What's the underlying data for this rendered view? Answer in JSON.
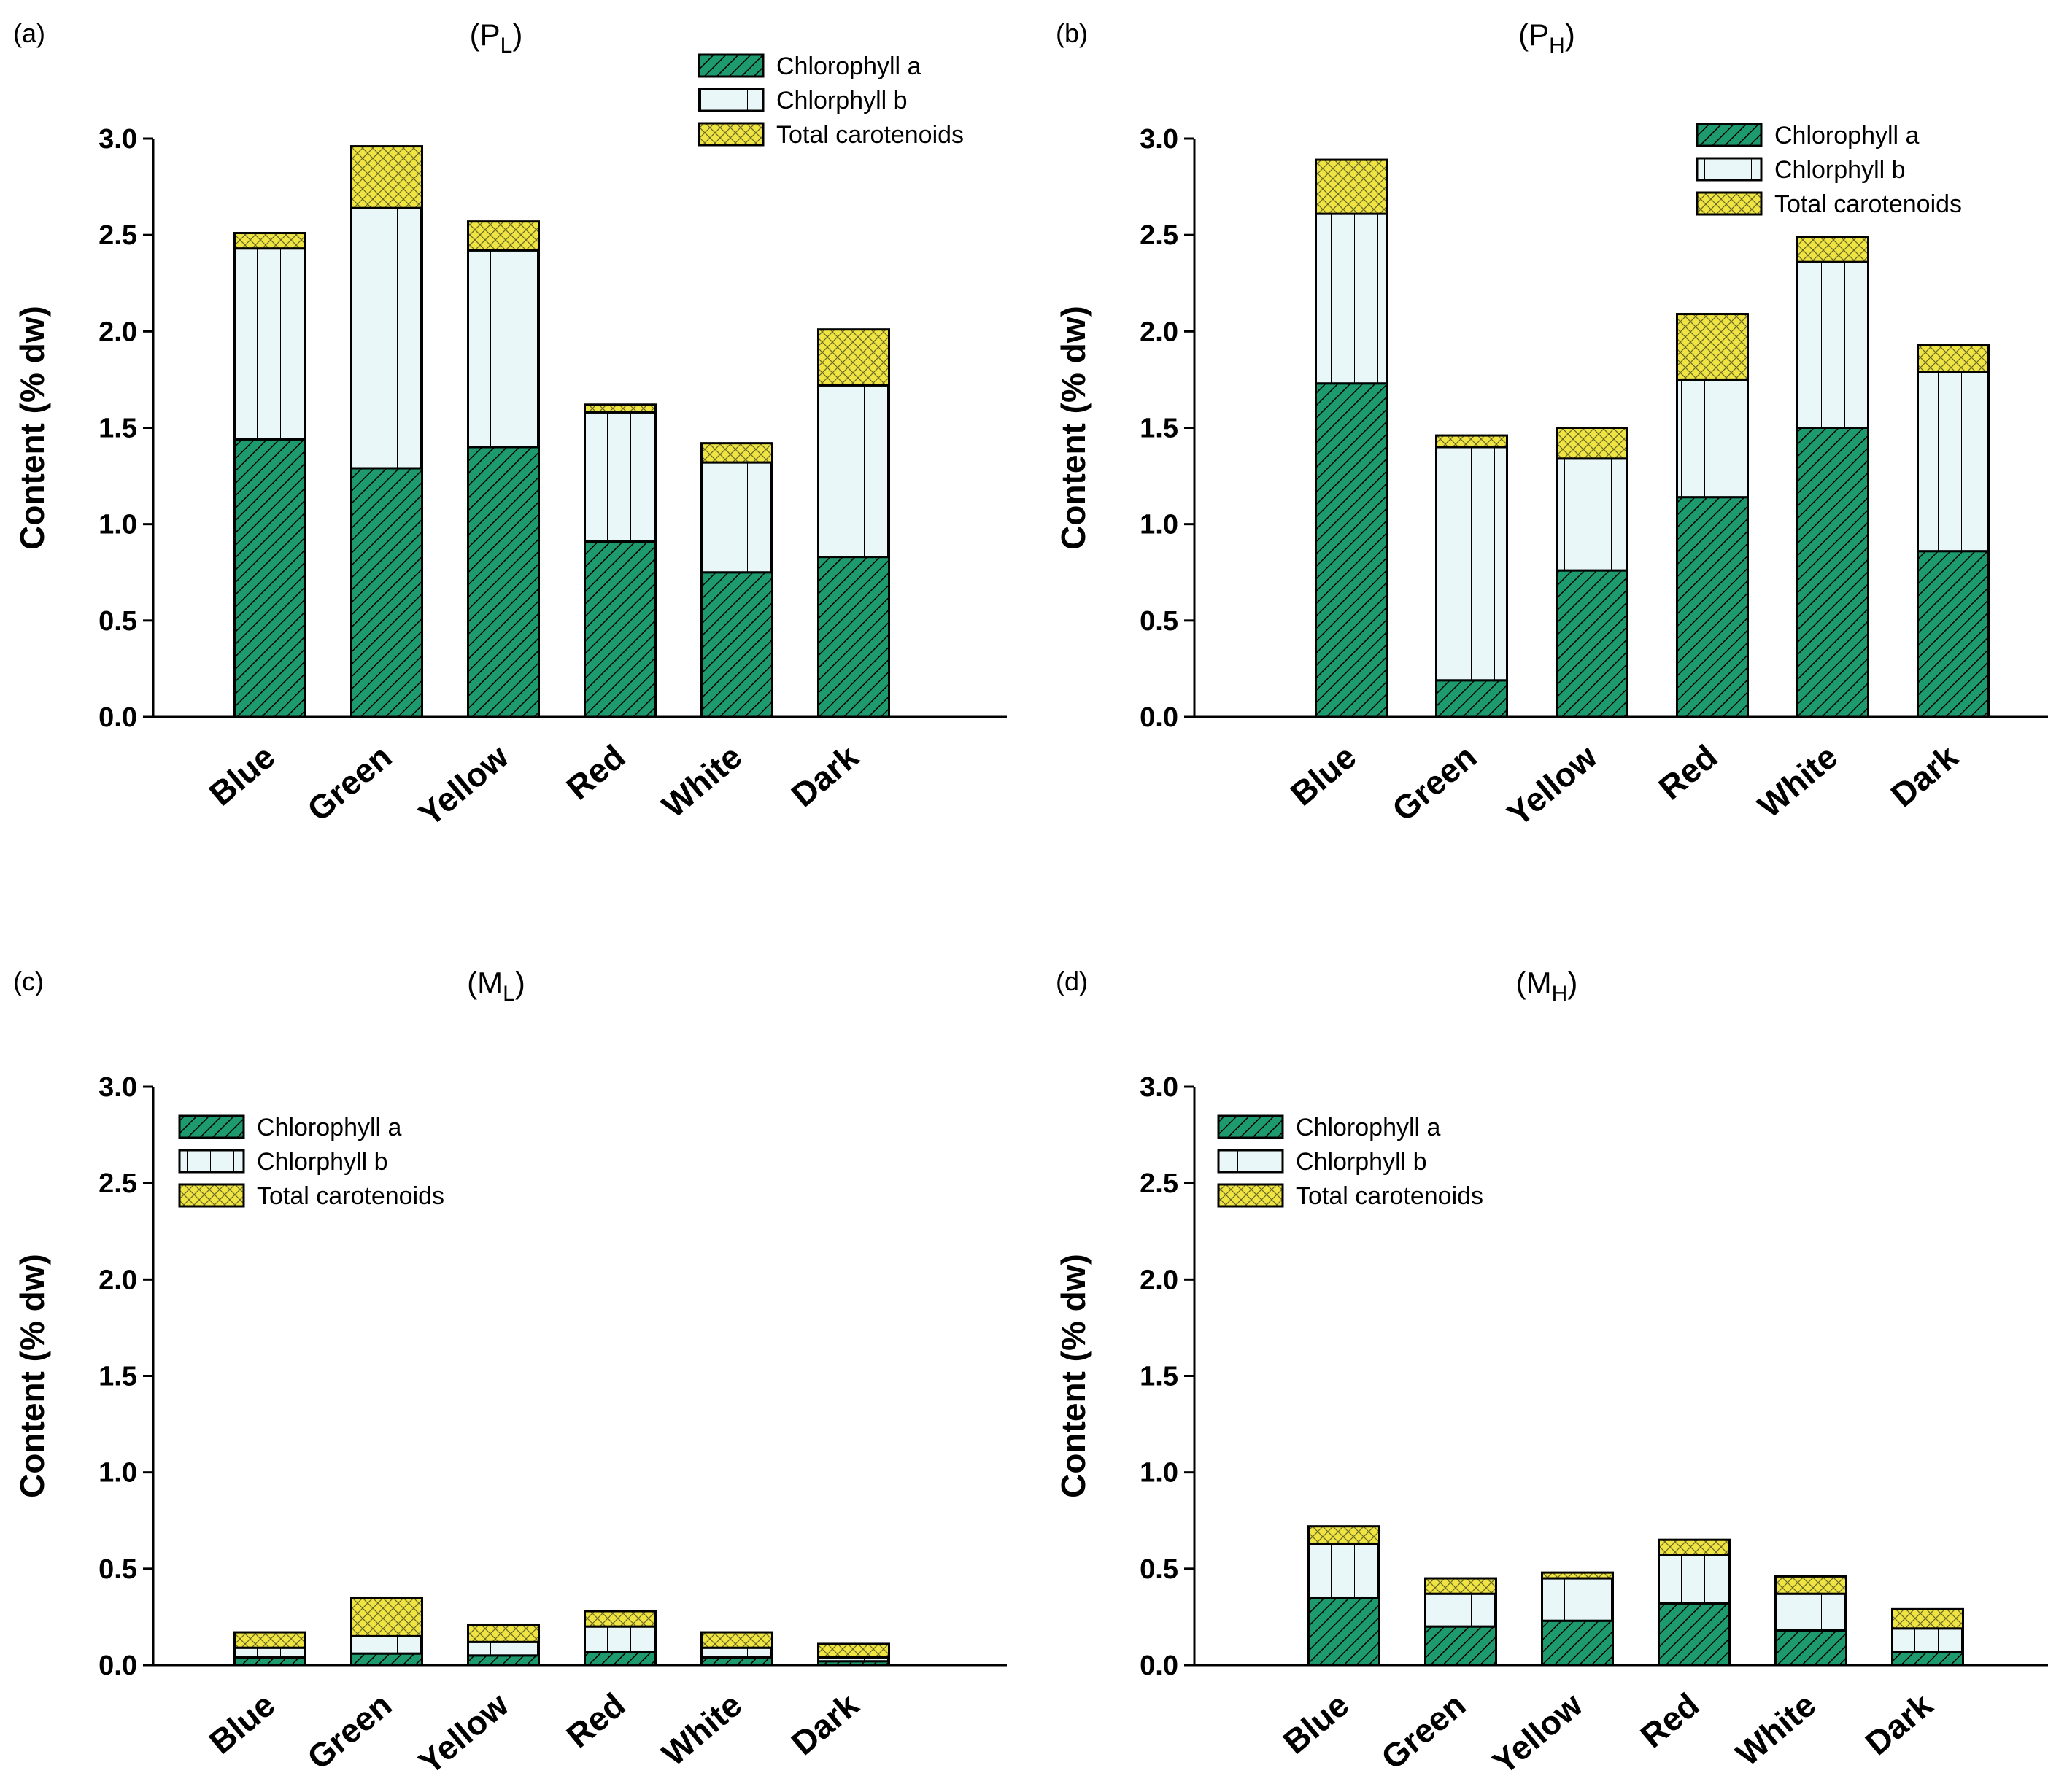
{
  "figure": {
    "colors": {
      "chl_a": "#1e9a6f",
      "chl_b": "#e9f7f9",
      "carot": "#f0e442",
      "axis": "#000000"
    }
  },
  "chart_data": [
    {
      "type": "bar",
      "stacked": true,
      "panel_tag": "(a)",
      "title_main": "(P",
      "title_sub": "L",
      "title_close": ")",
      "ylabel": "Content (% dw)",
      "ylim": [
        0,
        3
      ],
      "yticks": [
        "0.0",
        "0.5",
        "1.0",
        "1.5",
        "2.0",
        "2.5",
        "3.0"
      ],
      "legend_position": "top-right",
      "categories": [
        "Blue",
        "Green",
        "Yellow",
        "Red",
        "White",
        "Dark"
      ],
      "series": [
        {
          "name": "Chlorophyll a",
          "key": "chl_a",
          "values": [
            1.44,
            1.29,
            1.4,
            0.91,
            0.75,
            0.83
          ]
        },
        {
          "name": "Chlorphyll b",
          "key": "chl_b",
          "values": [
            0.99,
            1.35,
            1.02,
            0.67,
            0.57,
            0.89
          ]
        },
        {
          "name": "Total carotenoids",
          "key": "carot",
          "values": [
            0.08,
            0.32,
            0.15,
            0.04,
            0.1,
            0.29
          ]
        }
      ]
    },
    {
      "type": "bar",
      "stacked": true,
      "panel_tag": "(b)",
      "title_main": "(P",
      "title_sub": "H",
      "title_close": ")",
      "ylabel": "Content (% dw)",
      "ylim": [
        0,
        3
      ],
      "yticks": [
        "0.0",
        "0.5",
        "1.0",
        "1.5",
        "2.0",
        "2.5",
        "3.0"
      ],
      "legend_position": "top-right",
      "categories": [
        "Blue",
        "Green",
        "Yellow",
        "Red",
        "White",
        "Dark"
      ],
      "series": [
        {
          "name": "Chlorophyll a",
          "key": "chl_a",
          "values": [
            1.73,
            0.19,
            0.76,
            1.14,
            1.5,
            0.86
          ]
        },
        {
          "name": "Chlorphyll b",
          "key": "chl_b",
          "values": [
            0.88,
            1.21,
            0.58,
            0.61,
            0.86,
            0.93
          ]
        },
        {
          "name": "Total carotenoids",
          "key": "carot",
          "values": [
            0.28,
            0.06,
            0.16,
            0.34,
            0.13,
            0.14
          ]
        }
      ]
    },
    {
      "type": "bar",
      "stacked": true,
      "panel_tag": "(c)",
      "title_main": "(M",
      "title_sub": "L",
      "title_close": ")",
      "ylabel": "Content (% dw)",
      "ylim": [
        0,
        3
      ],
      "yticks": [
        "0.0",
        "0.5",
        "1.0",
        "1.5",
        "2.0",
        "2.5",
        "3.0"
      ],
      "legend_position": "top-left",
      "categories": [
        "Blue",
        "Green",
        "Yellow",
        "Red",
        "White",
        "Dark"
      ],
      "series": [
        {
          "name": "Chlorophyll a",
          "key": "chl_a",
          "values": [
            0.04,
            0.06,
            0.05,
            0.07,
            0.04,
            0.02
          ]
        },
        {
          "name": "Chlorphyll b",
          "key": "chl_b",
          "values": [
            0.05,
            0.09,
            0.07,
            0.13,
            0.05,
            0.02
          ]
        },
        {
          "name": "Total carotenoids",
          "key": "carot",
          "values": [
            0.08,
            0.2,
            0.09,
            0.08,
            0.08,
            0.07
          ]
        }
      ]
    },
    {
      "type": "bar",
      "stacked": true,
      "panel_tag": "(d)",
      "title_main": "(M",
      "title_sub": "H",
      "title_close": ")",
      "ylabel": "Content (% dw)",
      "ylim": [
        0,
        3
      ],
      "yticks": [
        "0.0",
        "0.5",
        "1.0",
        "1.5",
        "2.0",
        "2.5",
        "3.0"
      ],
      "legend_position": "top-left",
      "categories": [
        "Blue",
        "Green",
        "Yellow",
        "Red",
        "White",
        "Dark"
      ],
      "series": [
        {
          "name": "Chlorophyll a",
          "key": "chl_a",
          "values": [
            0.35,
            0.2,
            0.23,
            0.32,
            0.18,
            0.07
          ]
        },
        {
          "name": "Chlorphyll b",
          "key": "chl_b",
          "values": [
            0.28,
            0.17,
            0.22,
            0.25,
            0.19,
            0.12
          ]
        },
        {
          "name": "Total carotenoids",
          "key": "carot",
          "values": [
            0.09,
            0.08,
            0.03,
            0.08,
            0.09,
            0.1
          ]
        }
      ]
    }
  ]
}
